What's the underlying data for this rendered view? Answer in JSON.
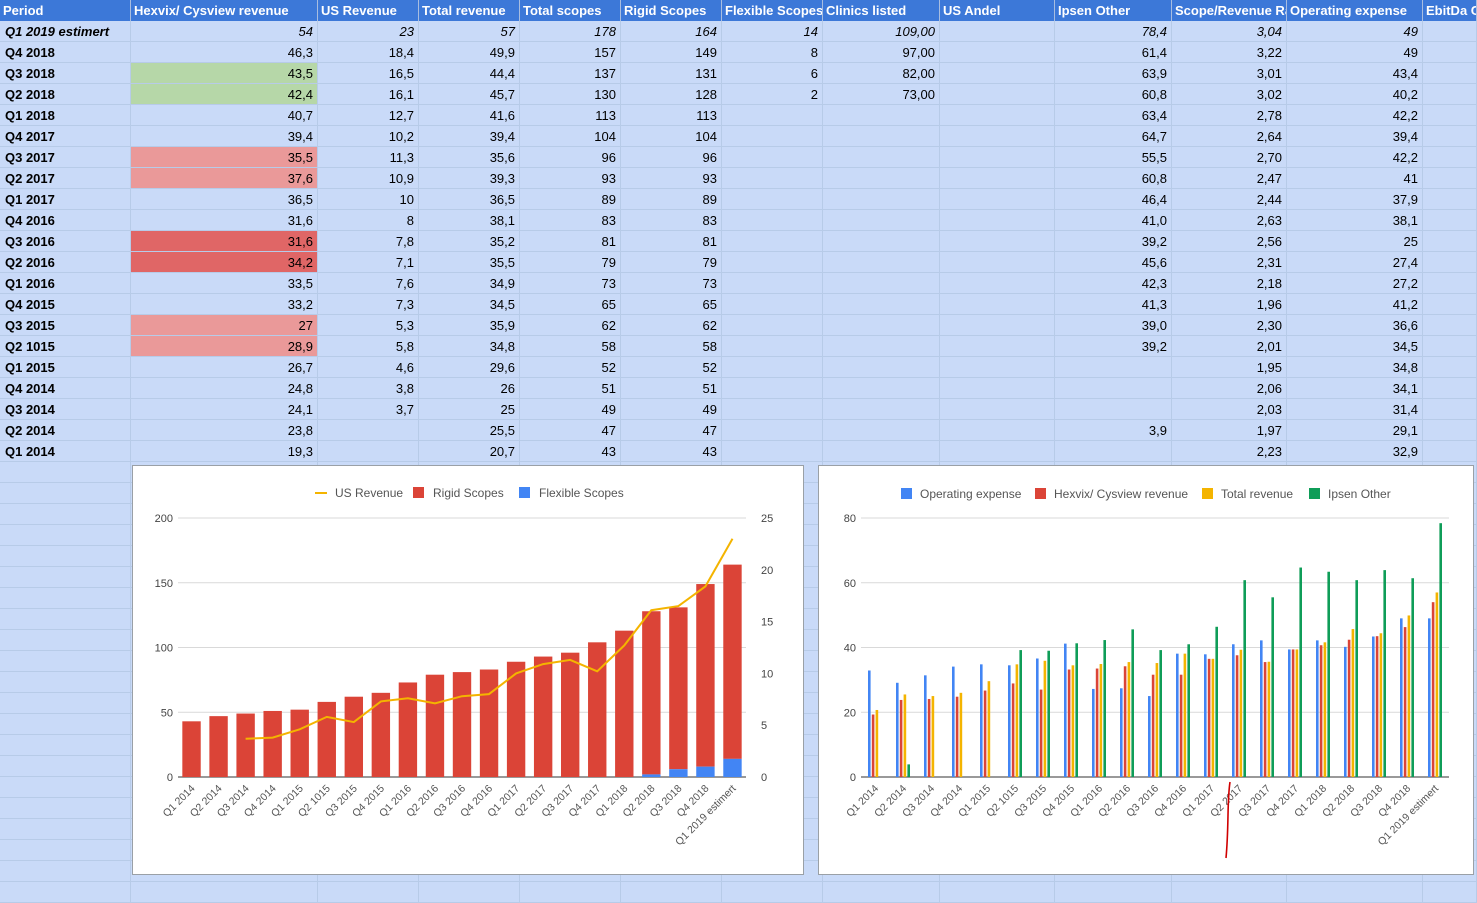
{
  "table": {
    "headers": [
      "Period",
      "Hexvix/ Cysview revenue",
      "US Revenue",
      "Total revenue",
      "Total scopes",
      "Rigid Scopes",
      "Flexible Scopes",
      "Clinics listed",
      "US Andel",
      "Ipsen Other",
      "Scope/Revenue Ra",
      "Operating expense",
      "EbitDa C"
    ],
    "rows": [
      {
        "period": "Q1 2019 estimert",
        "italic": true,
        "cells": [
          "54",
          "23",
          "57",
          "178",
          "164",
          "14",
          "109,00",
          "",
          "78,4",
          "3,04",
          "49",
          ""
        ],
        "hl": ""
      },
      {
        "period": "Q4 2018",
        "cells": [
          "46,3",
          "18,4",
          "49,9",
          "157",
          "149",
          "8",
          "97,00",
          "",
          "61,4",
          "3,22",
          "49",
          ""
        ],
        "hl": ""
      },
      {
        "period": "Q3 2018",
        "cells": [
          "43,5",
          "16,5",
          "44,4",
          "137",
          "131",
          "6",
          "82,00",
          "",
          "63,9",
          "3,01",
          "43,4",
          ""
        ],
        "hl": "#b6d7a8"
      },
      {
        "period": "Q2 2018",
        "cells": [
          "42,4",
          "16,1",
          "45,7",
          "130",
          "128",
          "2",
          "73,00",
          "",
          "60,8",
          "3,02",
          "40,2",
          ""
        ],
        "hl": "#b6d7a8"
      },
      {
        "period": "Q1 2018",
        "cells": [
          "40,7",
          "12,7",
          "41,6",
          "113",
          "113",
          "",
          "",
          "",
          "63,4",
          "2,78",
          "42,2",
          ""
        ],
        "hl": ""
      },
      {
        "period": "Q4 2017",
        "cells": [
          "39,4",
          "10,2",
          "39,4",
          "104",
          "104",
          "",
          "",
          "",
          "64,7",
          "2,64",
          "39,4",
          ""
        ],
        "hl": ""
      },
      {
        "period": "Q3 2017",
        "cells": [
          "35,5",
          "11,3",
          "35,6",
          "96",
          "96",
          "",
          "",
          "",
          "55,5",
          "2,70",
          "42,2",
          ""
        ],
        "hl": "#ea9999"
      },
      {
        "period": "Q2 2017",
        "cells": [
          "37,6",
          "10,9",
          "39,3",
          "93",
          "93",
          "",
          "",
          "",
          "60,8",
          "2,47",
          "41",
          ""
        ],
        "hl": "#ea9999"
      },
      {
        "period": "Q1 2017",
        "cells": [
          "36,5",
          "10",
          "36,5",
          "89",
          "89",
          "",
          "",
          "",
          "46,4",
          "2,44",
          "37,9",
          ""
        ],
        "hl": ""
      },
      {
        "period": "Q4 2016",
        "cells": [
          "31,6",
          "8",
          "38,1",
          "83",
          "83",
          "",
          "",
          "",
          "41,0",
          "2,63",
          "38,1",
          ""
        ],
        "hl": ""
      },
      {
        "period": "Q3 2016",
        "cells": [
          "31,6",
          "7,8",
          "35,2",
          "81",
          "81",
          "",
          "",
          "",
          "39,2",
          "2,56",
          "25",
          ""
        ],
        "hl": "#e06666"
      },
      {
        "period": "Q2 2016",
        "cells": [
          "34,2",
          "7,1",
          "35,5",
          "79",
          "79",
          "",
          "",
          "",
          "45,6",
          "2,31",
          "27,4",
          ""
        ],
        "hl": "#e06666"
      },
      {
        "period": "Q1 2016",
        "cells": [
          "33,5",
          "7,6",
          "34,9",
          "73",
          "73",
          "",
          "",
          "",
          "42,3",
          "2,18",
          "27,2",
          ""
        ],
        "hl": ""
      },
      {
        "period": "Q4 2015",
        "cells": [
          "33,2",
          "7,3",
          "34,5",
          "65",
          "65",
          "",
          "",
          "",
          "41,3",
          "1,96",
          "41,2",
          ""
        ],
        "hl": ""
      },
      {
        "period": "Q3 2015",
        "cells": [
          "27",
          "5,3",
          "35,9",
          "62",
          "62",
          "",
          "",
          "",
          "39,0",
          "2,30",
          "36,6",
          ""
        ],
        "hl": "#ea9999"
      },
      {
        "period": "Q2 1015",
        "cells": [
          "28,9",
          "5,8",
          "34,8",
          "58",
          "58",
          "",
          "",
          "",
          "39,2",
          "2,01",
          "34,5",
          ""
        ],
        "hl": "#ea9999"
      },
      {
        "period": "Q1 2015",
        "cells": [
          "26,7",
          "4,6",
          "29,6",
          "52",
          "52",
          "",
          "",
          "",
          "",
          "1,95",
          "34,8",
          ""
        ],
        "hl": ""
      },
      {
        "period": "Q4 2014",
        "cells": [
          "24,8",
          "3,8",
          "26",
          "51",
          "51",
          "",
          "",
          "",
          "",
          "2,06",
          "34,1",
          ""
        ],
        "hl": ""
      },
      {
        "period": "Q3 2014",
        "cells": [
          "24,1",
          "3,7",
          "25",
          "49",
          "49",
          "",
          "",
          "",
          "",
          "2,03",
          "31,4",
          ""
        ],
        "hl": ""
      },
      {
        "period": "Q2 2014",
        "cells": [
          "23,8",
          "",
          "25,5",
          "47",
          "47",
          "",
          "",
          "",
          "3,9",
          "1,97",
          "29,1",
          ""
        ],
        "hl": ""
      },
      {
        "period": "Q1 2014",
        "cells": [
          "19,3",
          "",
          "20,7",
          "43",
          "43",
          "",
          "",
          "",
          "",
          "2,23",
          "32,9",
          ""
        ],
        "hl": ""
      }
    ]
  },
  "chart_data": [
    {
      "type": "bar",
      "stacked": true,
      "categories": [
        "Q1 2014",
        "Q2 2014",
        "Q3 2014",
        "Q4 2014",
        "Q1 2015",
        "Q2 1015",
        "Q3 2015",
        "Q4 2015",
        "Q1 2016",
        "Q2 2016",
        "Q3 2016",
        "Q4 2016",
        "Q1 2017",
        "Q2 2017",
        "Q3 2017",
        "Q4 2017",
        "Q1 2018",
        "Q2 2018",
        "Q3 2018",
        "Q4 2018",
        "Q1 2019 estimert"
      ],
      "series": [
        {
          "name": "US Revenue",
          "type": "line",
          "axis": "right",
          "color": "#f4b400",
          "values": [
            null,
            null,
            3.7,
            3.8,
            4.6,
            5.8,
            5.3,
            7.3,
            7.6,
            7.1,
            7.8,
            8,
            10,
            10.9,
            11.3,
            10.2,
            12.7,
            16.1,
            16.5,
            18.4,
            23
          ]
        },
        {
          "name": "Rigid Scopes",
          "type": "bar",
          "color": "#db4437",
          "values": [
            43,
            47,
            49,
            51,
            52,
            58,
            62,
            65,
            73,
            79,
            81,
            83,
            89,
            93,
            96,
            104,
            113,
            128,
            131,
            149,
            164
          ]
        },
        {
          "name": "Flexible Scopes",
          "type": "bar",
          "color": "#4285f4",
          "values": [
            0,
            0,
            0,
            0,
            0,
            0,
            0,
            0,
            0,
            0,
            0,
            0,
            0,
            0,
            0,
            0,
            0,
            2,
            6,
            8,
            14
          ]
        }
      ],
      "left_axis": {
        "ylim": [
          0,
          200
        ],
        "ticks": [
          "0",
          "50",
          "100",
          "150",
          "200"
        ]
      },
      "right_axis": {
        "ylim": [
          0,
          25
        ],
        "ticks": [
          "0",
          "5",
          "10",
          "15",
          "20",
          "25"
        ]
      },
      "legend": "top-center"
    },
    {
      "type": "bar",
      "categories": [
        "Q1 2014",
        "Q2 2014",
        "Q3 2014",
        "Q4 2014",
        "Q1 2015",
        "Q2 1015",
        "Q3 2015",
        "Q4 2015",
        "Q1 2016",
        "Q2 2016",
        "Q3 2016",
        "Q4 2016",
        "Q1 2017",
        "Q2 2017",
        "Q3 2017",
        "Q4 2017",
        "Q1 2018",
        "Q2 2018",
        "Q3 2018",
        "Q4 2018",
        "Q1 2019 estimert"
      ],
      "series": [
        {
          "name": "Operating expense",
          "color": "#4285f4",
          "values": [
            32.9,
            29.1,
            31.4,
            34.1,
            34.8,
            34.5,
            36.6,
            41.2,
            27.2,
            27.4,
            25,
            38.1,
            37.9,
            41,
            42.2,
            39.4,
            42.2,
            40.2,
            43.4,
            49,
            49
          ]
        },
        {
          "name": "Hexvix/ Cysview revenue",
          "color": "#db4437",
          "values": [
            19.3,
            23.8,
            24.1,
            24.8,
            26.7,
            28.9,
            27,
            33.2,
            33.5,
            34.2,
            31.6,
            31.6,
            36.5,
            37.6,
            35.5,
            39.4,
            40.7,
            42.4,
            43.5,
            46.3,
            54
          ]
        },
        {
          "name": "Total revenue",
          "color": "#f4b400",
          "values": [
            20.7,
            25.5,
            25,
            26,
            29.6,
            34.8,
            35.9,
            34.5,
            34.9,
            35.5,
            35.2,
            38.1,
            36.5,
            39.3,
            35.6,
            39.4,
            41.6,
            45.7,
            44.4,
            49.9,
            57
          ]
        },
        {
          "name": "Ipsen Other",
          "color": "#0f9d58",
          "values": [
            null,
            3.9,
            null,
            null,
            null,
            39.2,
            39,
            41.3,
            42.3,
            45.6,
            39.2,
            41,
            46.4,
            60.8,
            55.5,
            64.7,
            63.4,
            60.8,
            63.9,
            61.4,
            78.4
          ]
        }
      ],
      "ylim": [
        0,
        80
      ],
      "ticks": [
        "0",
        "20",
        "40",
        "60",
        "80"
      ],
      "legend": "top-center"
    }
  ]
}
